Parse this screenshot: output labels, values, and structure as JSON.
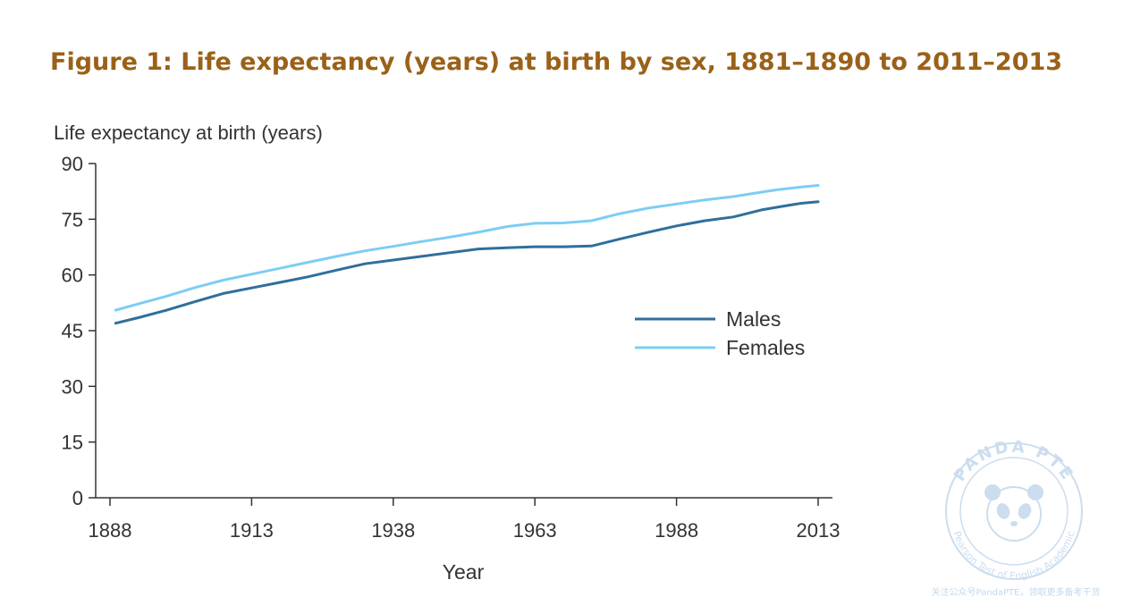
{
  "chart_data": {
    "type": "line",
    "title": "Figure 1: Life expectancy (years) at birth by sex, 1881–1890 to 2011–2013",
    "ylabel": "Life expectancy at birth (years)",
    "xlabel": "Year",
    "xlim": [
      1888,
      2013
    ],
    "ylim": [
      0,
      90
    ],
    "xticks": [
      "1888",
      "1913",
      "1938",
      "1963",
      "1988",
      "2013"
    ],
    "yticks": [
      "0",
      "15",
      "30",
      "45",
      "60",
      "75",
      "90"
    ],
    "grid": false,
    "legend": "right",
    "series": [
      {
        "name": "Males",
        "color": "#2f6f9c",
        "points": [
          [
            1889,
            47
          ],
          [
            1893,
            48.5
          ],
          [
            1898,
            50.5
          ],
          [
            1903,
            52.8
          ],
          [
            1908,
            55
          ],
          [
            1913,
            56.5
          ],
          [
            1918,
            58
          ],
          [
            1923,
            59.5
          ],
          [
            1928,
            61.3
          ],
          [
            1933,
            63
          ],
          [
            1938,
            64
          ],
          [
            1943,
            65
          ],
          [
            1948,
            66
          ],
          [
            1953,
            67
          ],
          [
            1958,
            67.3
          ],
          [
            1963,
            67.6
          ],
          [
            1968,
            67.6
          ],
          [
            1973,
            67.8
          ],
          [
            1978,
            69.7
          ],
          [
            1983,
            71.5
          ],
          [
            1988,
            73.2
          ],
          [
            1993,
            74.6
          ],
          [
            1998,
            75.6
          ],
          [
            2003,
            77.5
          ],
          [
            2006,
            78.3
          ],
          [
            2008,
            78.8
          ],
          [
            2010,
            79.3
          ],
          [
            2013,
            79.7
          ]
        ]
      },
      {
        "name": "Females",
        "color": "#7dcdf5",
        "points": [
          [
            1889,
            50.5
          ],
          [
            1893,
            52.2
          ],
          [
            1898,
            54.3
          ],
          [
            1903,
            56.6
          ],
          [
            1908,
            58.6
          ],
          [
            1913,
            60.2
          ],
          [
            1918,
            61.8
          ],
          [
            1923,
            63.4
          ],
          [
            1928,
            65
          ],
          [
            1933,
            66.5
          ],
          [
            1938,
            67.7
          ],
          [
            1943,
            69
          ],
          [
            1948,
            70.2
          ],
          [
            1953,
            71.5
          ],
          [
            1958,
            73
          ],
          [
            1963,
            73.9
          ],
          [
            1968,
            74
          ],
          [
            1973,
            74.6
          ],
          [
            1978,
            76.5
          ],
          [
            1983,
            78
          ],
          [
            1988,
            79.1
          ],
          [
            1993,
            80.2
          ],
          [
            1998,
            81.1
          ],
          [
            2003,
            82.3
          ],
          [
            2006,
            83
          ],
          [
            2008,
            83.3
          ],
          [
            2010,
            83.7
          ],
          [
            2013,
            84.1
          ]
        ]
      }
    ]
  },
  "watermark": {
    "logo_text": "PANDA PTE",
    "ring_text": "Pearson Test of English Academic",
    "caption": "关注公众号PandaPTE，领取更多备考干货",
    "color": "#b9d3ea"
  }
}
